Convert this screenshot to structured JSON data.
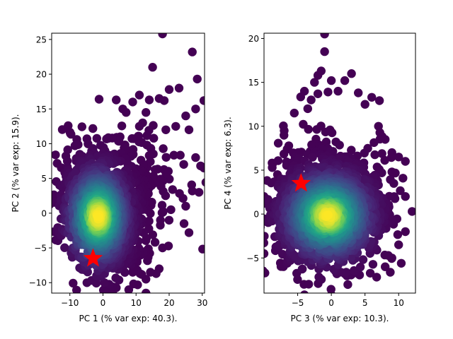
{
  "chart_data": [
    {
      "type": "scatter",
      "xlabel": "PC 1 (% var exp: 40.3).",
      "ylabel": "PC 2 (% var exp: 15.9).",
      "xlim": [
        -15.5,
        30.7
      ],
      "ylim": [
        -11.5,
        25.9
      ],
      "xticks": [
        -10,
        0,
        10,
        20,
        30
      ],
      "yticks": [
        -10,
        -5,
        0,
        5,
        10,
        15,
        20,
        25
      ],
      "colormap": "viridis",
      "density": {
        "center": [
          -1.5,
          -0.5
        ],
        "spread": [
          5.5,
          4.2
        ],
        "correlation": -0.3,
        "tail_direction": "upper-right"
      },
      "outliers": [
        [
          18,
          25.8
        ],
        [
          27,
          23.2
        ],
        [
          28.5,
          19.3
        ],
        [
          23,
          18
        ],
        [
          20,
          17.8
        ],
        [
          18.5,
          16.2
        ],
        [
          17,
          16.5
        ],
        [
          14,
          16.3
        ],
        [
          13,
          14.5
        ],
        [
          11,
          17
        ],
        [
          9,
          16
        ],
        [
          4,
          16.3
        ],
        [
          6,
          15
        ],
        [
          7,
          14.5
        ],
        [
          12,
          13
        ],
        [
          19,
          12
        ],
        [
          25,
          14
        ],
        [
          28,
          15
        ],
        [
          30.5,
          16.2
        ],
        [
          26,
          12
        ],
        [
          15,
          21
        ],
        [
          11,
          12.5
        ],
        [
          22,
          12.5
        ],
        [
          28,
          8
        ],
        [
          29.5,
          6.8
        ],
        [
          30.5,
          6.5
        ],
        [
          29,
          3
        ],
        [
          24.5,
          -1.5
        ],
        [
          26,
          -2.8
        ],
        [
          25,
          1
        ],
        [
          27,
          3.2
        ],
        [
          18,
          -5
        ],
        [
          17,
          -8
        ],
        [
          13,
          -9.5
        ],
        [
          13,
          -11.5
        ],
        [
          9,
          -8.5
        ]
      ],
      "marker": {
        "x": -3,
        "y": -6.5,
        "symbol": "star",
        "color": "#ff0000"
      }
    },
    {
      "type": "scatter",
      "xlabel": "PC 3 (% var exp: 10.3).",
      "ylabel": "PC 4 (% var exp: 6.3).",
      "xlim": [
        -10,
        12.5
      ],
      "ylim": [
        -9.0,
        20.6
      ],
      "xticks": [
        -5,
        0,
        5,
        10
      ],
      "yticks": [
        -5,
        0,
        5,
        10,
        15,
        20
      ],
      "colormap": "viridis",
      "density": {
        "center": [
          -0.5,
          -0.2
        ],
        "spread": [
          4.0,
          3.0
        ],
        "correlation": 0.05,
        "tail_direction": "up"
      },
      "outliers": [
        [
          -1,
          20.5
        ],
        [
          -1,
          18.5
        ],
        [
          -1.5,
          16.3
        ],
        [
          -2,
          15.8
        ],
        [
          3,
          16
        ],
        [
          -2.5,
          15
        ],
        [
          0,
          15.2
        ],
        [
          2,
          15.2
        ],
        [
          -4,
          14
        ],
        [
          -2,
          13.7
        ],
        [
          -0.5,
          13.9
        ],
        [
          -3,
          13
        ],
        [
          1,
          14
        ],
        [
          4,
          13.8
        ],
        [
          6,
          13.3
        ],
        [
          -3.5,
          12
        ],
        [
          5,
          12.5
        ],
        [
          -5.5,
          11.5
        ],
        [
          -7,
          9.5
        ],
        [
          7,
          10
        ],
        [
          8,
          8.5
        ],
        [
          9,
          7
        ],
        [
          10,
          6.5
        ],
        [
          11,
          6
        ],
        [
          9,
          4.8
        ],
        [
          11,
          2
        ],
        [
          12,
          0.3
        ],
        [
          11,
          -2
        ],
        [
          10,
          -3.5
        ],
        [
          9,
          -5
        ],
        [
          8,
          -6
        ],
        [
          -4,
          -9.2
        ],
        [
          0,
          -9.2
        ],
        [
          -10,
          2
        ],
        [
          -10,
          -4.5
        ],
        [
          -8,
          4.5
        ]
      ],
      "marker": {
        "x": -4.5,
        "y": 3.5,
        "symbol": "star",
        "color": "#ff0000"
      }
    }
  ]
}
